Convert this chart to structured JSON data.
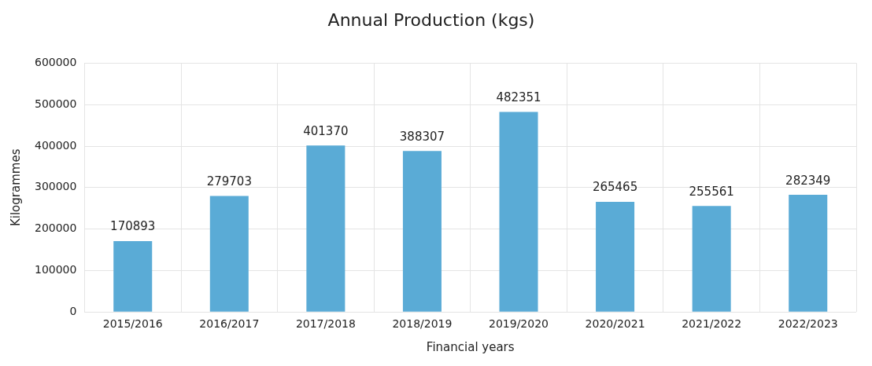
{
  "chart_data": {
    "type": "bar",
    "title": "Annual Production (kgs)",
    "xlabel": "Financial years",
    "ylabel": "Kilogrammes",
    "categories": [
      "2015/2016",
      "2016/2017",
      "2017/2018",
      "2018/2019",
      "2019/2020",
      "2020/2021",
      "2021/2022",
      "2022/2023"
    ],
    "values": [
      170893,
      279703,
      401370,
      388307,
      482351,
      265465,
      255561,
      282349
    ],
    "color": "#5aabd6",
    "ylim": [
      0,
      600000
    ],
    "yticks": [
      0,
      100000,
      200000,
      300000,
      400000,
      500000,
      600000
    ],
    "grid": true,
    "data_labels": true,
    "legend": false
  }
}
